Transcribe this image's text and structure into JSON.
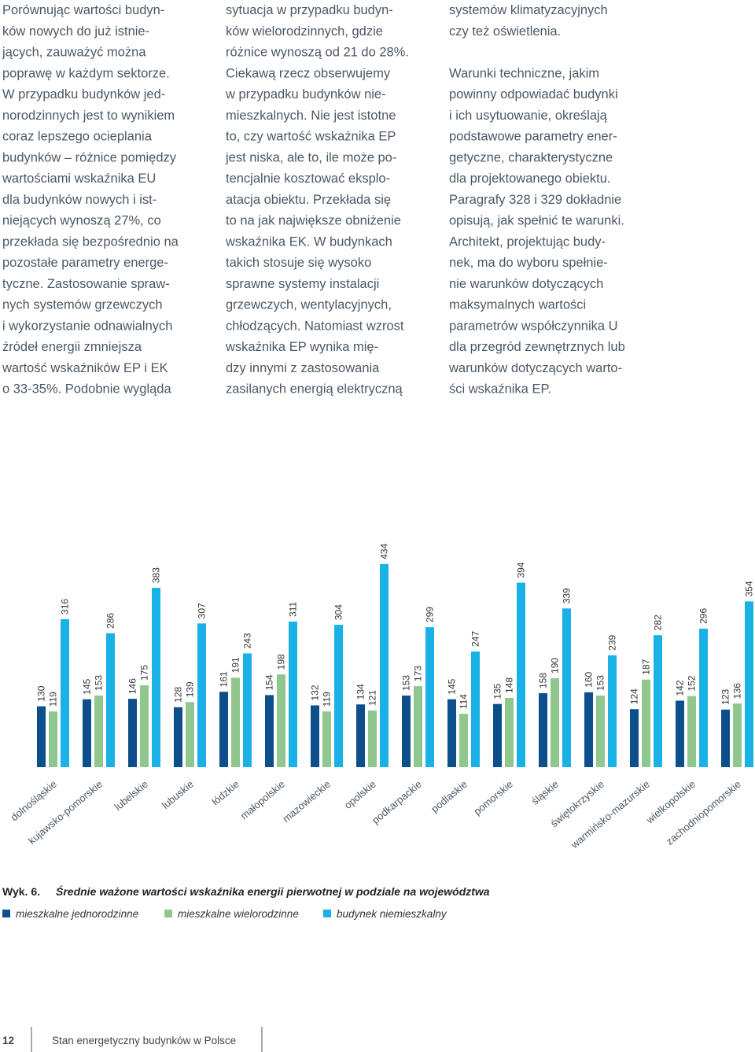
{
  "columns": [
    {
      "paragraphs": [
        [
          "Porównując wartości budyn-",
          "ków nowych do już istnie-",
          "jących, zauważyć można",
          "poprawę w każdym sektorze.",
          "W przypadku budynków jed-",
          "norodzinnych jest to wynikiem",
          "coraz lepszego ocieplania",
          "budynków – różnice pomiędzy",
          "wartościami wskaźnika EU",
          "dla budynków nowych i ist-",
          "niejących wynoszą 27%, co",
          "przekłada się bezpośrednio na",
          "pozostałe parametry energe-",
          "tyczne. Zastosowanie spraw-",
          "nych systemów grzewczych",
          "i wykorzystanie odnawialnych",
          "źródeł energii zmniejsza",
          "wartość wskaźników EP i EK",
          "o 33-35%. Podobnie wygląda"
        ]
      ]
    },
    {
      "paragraphs": [
        [
          "sytuacja w przypadku budyn-",
          "ków wielorodzinnych, gdzie",
          "różnice wynoszą od 21 do 28%.",
          "Ciekawą rzecz obserwujemy",
          "w przypadku budynków nie-",
          "mieszkalnych. Nie jest istotne",
          "to, czy wartość wskaźnika EP",
          "jest niska, ale to, ile może po-",
          "tencjalnie kosztować eksplo-",
          "atacja obiektu. Przekłada się",
          "to na jak największe obniżenie",
          "wskaźnika EK. W budynkach",
          "takich stosuje się wysoko",
          "sprawne systemy instalacji",
          "grzewczych, wentylacyjnych,",
          "chłodzących. Natomiast wzrost",
          "wskaźnika EP wynika mię-",
          "dzy innymi z zastosowania",
          "zasilanych energią elektryczną"
        ]
      ]
    },
    {
      "paragraphs": [
        [
          "systemów klimatyzacyjnych",
          "czy też oświetlenia."
        ],
        [
          "Warunki techniczne, jakim",
          "powinny odpowiadać budynki",
          "i ich usytuowanie, określają",
          "podstawowe parametry ener-",
          "getyczne, charakterystyczne",
          "dla projektowanego obiektu.",
          "Paragrafy 328 i 329 dokładnie",
          "opisują, jak spełnić te warunki.",
          "Architekt, projektując budy-",
          "nek, ma do wyboru spełnie-",
          "nie  warunków dotyczących",
          "maksymalnych wartości",
          "parametrów współczynnika U",
          "dla przegród zewnętrznych lub",
          "warunków dotyczących warto-",
          "ści wskaźnika EP."
        ]
      ]
    }
  ],
  "chart_data": {
    "type": "bar",
    "figure_label": "Wyk. 6.",
    "title": "Średnie ważone wartości wskaźnika energii pierwotnej w podziale na województwa",
    "categories": [
      "dolnośląskie",
      "kujawsko-pomorskie",
      "lubelskie",
      "lubuskie",
      "łódzkie",
      "małopolskie",
      "mazowieckie",
      "opolskie",
      "podkarpackie",
      "podlaskie",
      "pomorskie",
      "śląskie",
      "świętokrzyskie",
      "warmińsko-mazurskie",
      "wielkopolskie",
      "zachodniopomorskie"
    ],
    "series": [
      {
        "name": "mieszkalne jednorodzinne",
        "color": "#0d4f8b",
        "values": [
          130,
          145,
          146,
          128,
          161,
          154,
          132,
          134,
          153,
          145,
          135,
          158,
          160,
          124,
          142,
          123
        ]
      },
      {
        "name": "mieszkalne wielorodzinne",
        "color": "#8fc78f",
        "values": [
          119,
          153,
          175,
          139,
          191,
          198,
          119,
          121,
          173,
          114,
          148,
          190,
          153,
          187,
          152,
          136
        ]
      },
      {
        "name": "budynek niemieszkalny",
        "color": "#1ab1e6",
        "values": [
          316,
          286,
          383,
          307,
          243,
          311,
          304,
          434,
          299,
          247,
          394,
          339,
          239,
          282,
          296,
          354
        ]
      }
    ]
  },
  "footer": {
    "page_number": "12",
    "publication": "Stan energetyczny budynków w Polsce"
  }
}
